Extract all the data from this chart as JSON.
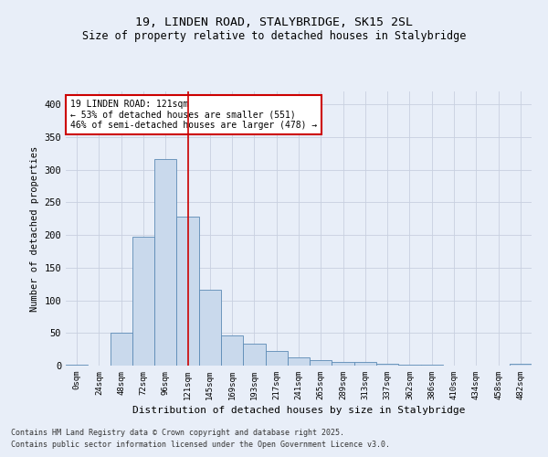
{
  "title1": "19, LINDEN ROAD, STALYBRIDGE, SK15 2SL",
  "title2": "Size of property relative to detached houses in Stalybridge",
  "xlabel": "Distribution of detached houses by size in Stalybridge",
  "ylabel": "Number of detached properties",
  "categories": [
    "0sqm",
    "24sqm",
    "48sqm",
    "72sqm",
    "96sqm",
    "121sqm",
    "145sqm",
    "169sqm",
    "193sqm",
    "217sqm",
    "241sqm",
    "265sqm",
    "289sqm",
    "313sqm",
    "337sqm",
    "362sqm",
    "386sqm",
    "410sqm",
    "434sqm",
    "458sqm",
    "482sqm"
  ],
  "values": [
    2,
    0,
    51,
    197,
    316,
    228,
    116,
    46,
    34,
    22,
    12,
    9,
    6,
    5,
    3,
    1,
    1,
    0,
    0,
    0,
    3
  ],
  "bar_color": "#c9d9ec",
  "bar_edge_color": "#5b8ab5",
  "grid_color": "#c8d0e0",
  "background_color": "#e8eef8",
  "property_line_x": 5,
  "annotation_title": "19 LINDEN ROAD: 121sqm",
  "annotation_line1": "← 53% of detached houses are smaller (551)",
  "annotation_line2": "46% of semi-detached houses are larger (478) →",
  "annotation_box_color": "#cc0000",
  "ylim": [
    0,
    420
  ],
  "yticks": [
    0,
    50,
    100,
    150,
    200,
    250,
    300,
    350,
    400
  ],
  "footer1": "Contains HM Land Registry data © Crown copyright and database right 2025.",
  "footer2": "Contains public sector information licensed under the Open Government Licence v3.0."
}
